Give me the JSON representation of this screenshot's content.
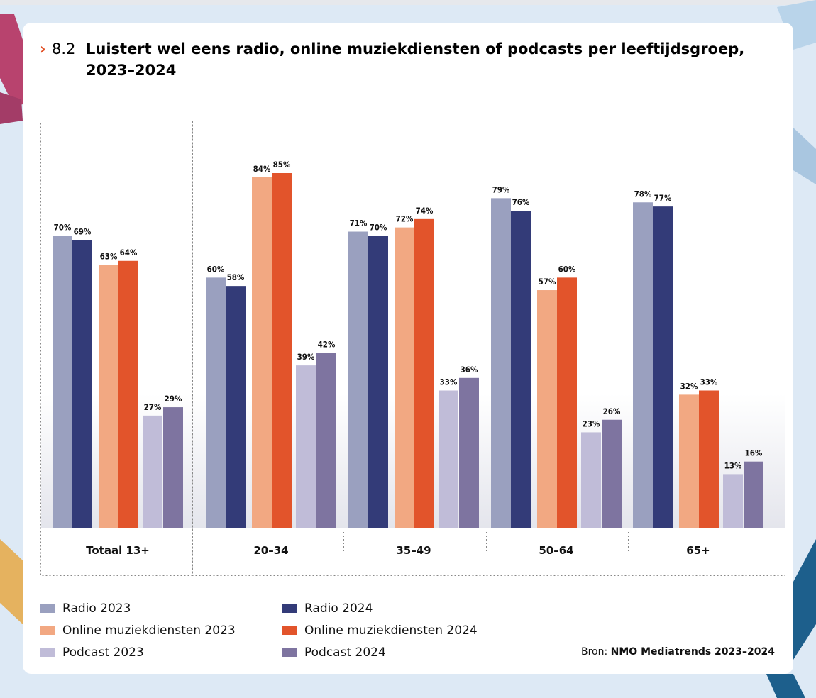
{
  "header": {
    "number": "8.2",
    "title": "Luistert wel eens radio, online muziekdiensten of podcasts per leeftijdsgroep, 2023–2024"
  },
  "chart_data": {
    "type": "bar",
    "title": "Luistert wel eens radio, online muziekdiensten of podcasts per leeftijdsgroep, 2023–2024",
    "categories": [
      "Totaal 13+",
      "20–34",
      "35–49",
      "50–64",
      "65+"
    ],
    "series": [
      {
        "name": "Radio 2023",
        "color": "#9aa0bf",
        "values": [
          70,
          60,
          71,
          79,
          78
        ]
      },
      {
        "name": "Radio 2024",
        "color": "#333b78",
        "values": [
          69,
          58,
          70,
          76,
          77
        ]
      },
      {
        "name": "Online muziekdiensten 2023",
        "color": "#f2a882",
        "values": [
          63,
          84,
          72,
          57,
          32
        ]
      },
      {
        "name": "Online muziekdiensten 2024",
        "color": "#e2542b",
        "values": [
          64,
          85,
          74,
          60,
          33
        ]
      },
      {
        "name": "Podcast 2023",
        "color": "#c0bcd8",
        "values": [
          27,
          39,
          33,
          23,
          13
        ]
      },
      {
        "name": "Podcast 2024",
        "color": "#7e74a0",
        "values": [
          29,
          42,
          36,
          26,
          16
        ]
      }
    ],
    "value_suffix": "%",
    "ylim": [
      0,
      85
    ],
    "legend_position": "bottom-left",
    "grid": false
  },
  "source": {
    "label": "Bron:",
    "value": "NMO Mediatrends 2023–2024"
  }
}
